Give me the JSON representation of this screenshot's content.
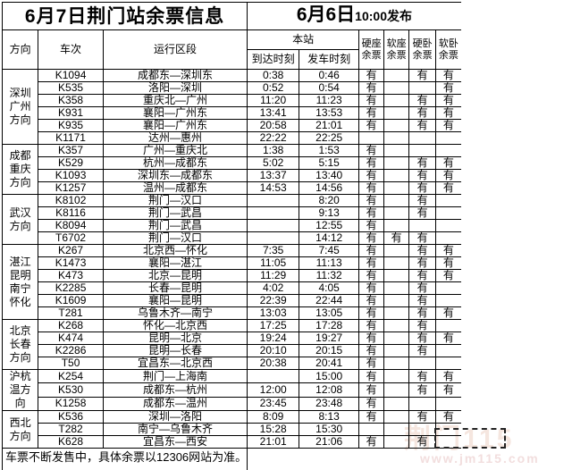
{
  "title": {
    "left": "6月7日荆门站余票信息",
    "date": "6月6日",
    "time": "10:00发布"
  },
  "header": {
    "direction": "方向",
    "train": "车次",
    "section": "运行区段",
    "station": "本站",
    "arrive": "到达时刻",
    "depart": "发车时刻",
    "seat_cols": [
      "硬座\n余票",
      "软座\n余票",
      "硬卧\n余票",
      "软卧\n余票"
    ]
  },
  "availability_symbol": "有",
  "groups": [
    {
      "direction": "深圳\n广州\n方向",
      "rows": [
        {
          "train": "K1094",
          "section": "成都东—深圳东",
          "arrive": "0:38",
          "depart": "0:46",
          "hard_seat": "有",
          "soft_seat": "",
          "hard_sleeper": "有",
          "soft_sleeper": "有"
        },
        {
          "train": "K535",
          "section": "洛阳—深圳",
          "arrive": "0:52",
          "depart": "0:54",
          "hard_seat": "有",
          "soft_seat": "",
          "hard_sleeper": "",
          "soft_sleeper": "有"
        },
        {
          "train": "K358",
          "section": "重庆北—广州",
          "arrive": "11:20",
          "depart": "11:23",
          "hard_seat": "有",
          "soft_seat": "",
          "hard_sleeper": "有",
          "soft_sleeper": "有"
        },
        {
          "train": "K931",
          "section": "襄阳—广州东",
          "arrive": "13:41",
          "depart": "13:53",
          "hard_seat": "有",
          "soft_seat": "",
          "hard_sleeper": "有",
          "soft_sleeper": "有"
        },
        {
          "train": "K935",
          "section": "襄阳—广州东",
          "arrive": "20:58",
          "depart": "21:01",
          "hard_seat": "有",
          "soft_seat": "",
          "hard_sleeper": "有",
          "soft_sleeper": "有"
        },
        {
          "train": "K1171",
          "section": "达州—惠州",
          "arrive": "22:22",
          "depart": "22:25",
          "hard_seat": "",
          "soft_seat": "",
          "hard_sleeper": "",
          "soft_sleeper": ""
        }
      ]
    },
    {
      "direction": "成都\n重庆\n方向",
      "rows": [
        {
          "train": "K357",
          "section": "广州—重庆北",
          "arrive": "1:38",
          "depart": "1:53",
          "hard_seat": "有",
          "soft_seat": "",
          "hard_sleeper": "",
          "soft_sleeper": ""
        },
        {
          "train": "K529",
          "section": "杭州—成都东",
          "arrive": "5:02",
          "depart": "5:15",
          "hard_seat": "有",
          "soft_seat": "",
          "hard_sleeper": "有",
          "soft_sleeper": "有"
        },
        {
          "train": "K1093",
          "section": "深圳东—成都东",
          "arrive": "13:37",
          "depart": "13:40",
          "hard_seat": "有",
          "soft_seat": "",
          "hard_sleeper": "有",
          "soft_sleeper": "有"
        },
        {
          "train": "K1257",
          "section": "温州—成都东",
          "arrive": "14:53",
          "depart": "14:56",
          "hard_seat": "有",
          "soft_seat": "",
          "hard_sleeper": "有",
          "soft_sleeper": "有"
        }
      ]
    },
    {
      "direction": "武汉\n方向",
      "rows": [
        {
          "train": "K8102",
          "section": "荆门—汉口",
          "arrive": "",
          "depart": "8:20",
          "hard_seat": "有",
          "soft_seat": "",
          "hard_sleeper": "有",
          "soft_sleeper": ""
        },
        {
          "train": "K8116",
          "section": "荆门—武昌",
          "arrive": "",
          "depart": "9:13",
          "hard_seat": "有",
          "soft_seat": "",
          "hard_sleeper": "有",
          "soft_sleeper": ""
        },
        {
          "train": "K8094",
          "section": "荆门—武昌",
          "arrive": "",
          "depart": "12:55",
          "hard_seat": "有",
          "soft_seat": "",
          "hard_sleeper": "",
          "soft_sleeper": ""
        },
        {
          "train": "T6702",
          "section": "荆门—汉口",
          "arrive": "",
          "depart": "14:12",
          "hard_seat": "有",
          "soft_seat": "有",
          "hard_sleeper": "有",
          "soft_sleeper": ""
        }
      ]
    },
    {
      "direction": "湛江\n昆明\n南宁\n怀化",
      "rows": [
        {
          "train": "K267",
          "section": "北京西—怀化",
          "arrive": "7:35",
          "depart": "7:45",
          "hard_seat": "有",
          "soft_seat": "",
          "hard_sleeper": "有",
          "soft_sleeper": "有"
        },
        {
          "train": "K1473",
          "section": "襄阳—湛江",
          "arrive": "11:05",
          "depart": "11:13",
          "hard_seat": "有",
          "soft_seat": "",
          "hard_sleeper": "有",
          "soft_sleeper": "有"
        },
        {
          "train": "K473",
          "section": "北京—昆明",
          "arrive": "11:29",
          "depart": "11:32",
          "hard_seat": "有",
          "soft_seat": "",
          "hard_sleeper": "有",
          "soft_sleeper": "有"
        },
        {
          "train": "K2285",
          "section": "长春—昆明",
          "arrive": "4:02",
          "depart": "4:05",
          "hard_seat": "有",
          "soft_seat": "",
          "hard_sleeper": "有",
          "soft_sleeper": ""
        },
        {
          "train": "K1609",
          "section": "襄阳—昆明",
          "arrive": "22:39",
          "depart": "22:44",
          "hard_seat": "有",
          "soft_seat": "",
          "hard_sleeper": "有",
          "soft_sleeper": ""
        },
        {
          "train": "T281",
          "section": "乌鲁木齐—南宁",
          "arrive": "13:03",
          "depart": "13:05",
          "hard_seat": "有",
          "soft_seat": "",
          "hard_sleeper": "有",
          "soft_sleeper": "有"
        }
      ]
    },
    {
      "direction": "北京\n长春\n方向",
      "rows": [
        {
          "train": "K268",
          "section": "怀化—北京西",
          "arrive": "17:25",
          "depart": "17:28",
          "hard_seat": "有",
          "soft_seat": "",
          "hard_sleeper": "有",
          "soft_sleeper": ""
        },
        {
          "train": "K474",
          "section": "昆明—北京",
          "arrive": "19:24",
          "depart": "19:27",
          "hard_seat": "有",
          "soft_seat": "",
          "hard_sleeper": "有",
          "soft_sleeper": "有"
        },
        {
          "train": "K2286",
          "section": "昆明—长春",
          "arrive": "20:10",
          "depart": "20:15",
          "hard_seat": "有",
          "soft_seat": "",
          "hard_sleeper": "有",
          "soft_sleeper": ""
        },
        {
          "train": "T50",
          "section": "宜昌东—北京西",
          "arrive": "20:38",
          "depart": "20:41",
          "hard_seat": "有",
          "soft_seat": "",
          "hard_sleeper": "",
          "soft_sleeper": ""
        }
      ]
    },
    {
      "direction": "沪杭\n温方\n向",
      "rows": [
        {
          "train": "K254",
          "section": "荆门—上海南",
          "arrive": "",
          "depart": "15:00",
          "hard_seat": "有",
          "soft_seat": "",
          "hard_sleeper": "有",
          "soft_sleeper": "有"
        },
        {
          "train": "K530",
          "section": "成都东—杭州",
          "arrive": "12:00",
          "depart": "12:08",
          "hard_seat": "有",
          "soft_seat": "",
          "hard_sleeper": "有",
          "soft_sleeper": "有"
        },
        {
          "train": "K1258",
          "section": "成都东—温州",
          "arrive": "23:45",
          "depart": "23:48",
          "hard_seat": "有",
          "soft_seat": "",
          "hard_sleeper": "",
          "soft_sleeper": ""
        }
      ]
    },
    {
      "direction": "西北\n方向",
      "rows": [
        {
          "train": "K536",
          "section": "深圳—洛阳",
          "arrive": "8:09",
          "depart": "8:13",
          "hard_seat": "有",
          "soft_seat": "",
          "hard_sleeper": "有",
          "soft_sleeper": "有"
        },
        {
          "train": "T282",
          "section": "南宁—乌鲁木齐",
          "arrive": "15:28",
          "depart": "15:30",
          "hard_seat": "",
          "soft_seat": "",
          "hard_sleeper": "",
          "soft_sleeper": ""
        },
        {
          "train": "K628",
          "section": "宜昌东—西安",
          "arrive": "21:01",
          "depart": "21:06",
          "hard_seat": "有",
          "soft_seat": "",
          "hard_sleeper": "有",
          "soft_sleeper": ""
        }
      ]
    }
  ],
  "footer": {
    "text": "车票不断发售中，具体余票以12306网站为准。"
  },
  "watermark": {
    "text": "荆门115",
    "url": "www.jm115.com"
  },
  "colors": {
    "border": "#000000",
    "background": "#ffffff",
    "text": "#000000",
    "watermark_text": "#f5e6df",
    "watermark_url": "#f2dede",
    "watermark_dash": "#222222"
  }
}
